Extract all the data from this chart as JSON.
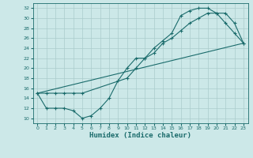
{
  "title": "",
  "xlabel": "Humidex (Indice chaleur)",
  "ylabel": "",
  "bg_color": "#cce8e8",
  "grid_color": "#aacccc",
  "line_color": "#1a6b6b",
  "xlim": [
    -0.5,
    23.5
  ],
  "ylim": [
    9,
    33
  ],
  "yticks": [
    10,
    12,
    14,
    16,
    18,
    20,
    22,
    24,
    26,
    28,
    30,
    32
  ],
  "xticks": [
    0,
    1,
    2,
    3,
    4,
    5,
    6,
    7,
    8,
    9,
    10,
    11,
    12,
    13,
    14,
    15,
    16,
    17,
    18,
    19,
    20,
    21,
    22,
    23
  ],
  "line1_x": [
    0,
    1,
    2,
    3,
    4,
    5,
    6,
    7,
    8,
    9,
    10,
    11,
    12,
    13,
    14,
    15,
    16,
    17,
    18,
    19,
    20,
    21,
    22,
    23
  ],
  "line1_y": [
    15,
    12,
    12,
    12,
    11.5,
    10,
    10.5,
    12,
    14,
    17.5,
    20,
    22,
    22,
    24,
    25.5,
    27,
    30.5,
    31.5,
    32,
    32,
    31,
    29,
    27,
    25
  ],
  "line2_x": [
    0,
    1,
    2,
    3,
    4,
    5,
    10,
    11,
    12,
    13,
    14,
    15,
    16,
    17,
    18,
    19,
    20,
    21,
    22,
    23
  ],
  "line2_y": [
    15,
    15,
    15,
    15,
    15,
    15,
    18,
    20,
    22,
    23,
    25,
    26,
    27.5,
    29,
    30,
    31,
    31,
    31,
    29,
    25
  ],
  "line3_x": [
    0,
    23
  ],
  "line3_y": [
    15,
    25
  ]
}
